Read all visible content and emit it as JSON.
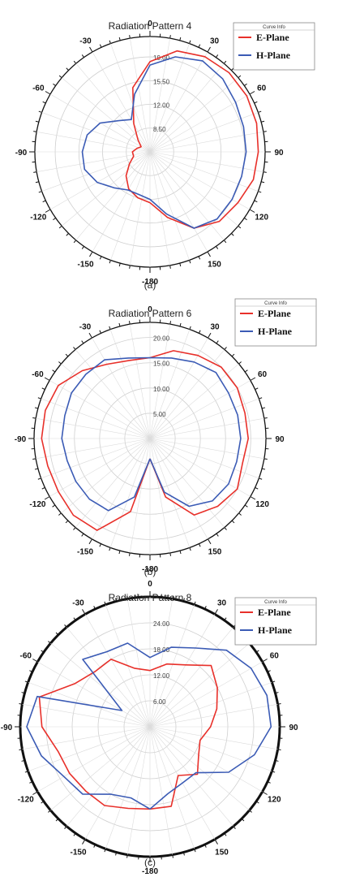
{
  "chart_data": [
    {
      "type": "polar-line",
      "title": "Radiation Pattern 4",
      "caption": "(a)",
      "angle_tick_labels": [
        "0",
        "30",
        "60",
        "90",
        "120",
        "150",
        "-180",
        "-150",
        "-120",
        "-90",
        "-60",
        "-30"
      ],
      "radial_ticks": [
        "8.50",
        "12.00",
        "15.50",
        "19.00"
      ],
      "radial_range": [
        5,
        22
      ],
      "legend": {
        "title": "Curve Info",
        "position": "top-right"
      },
      "theta_deg": [
        -180,
        -165,
        -150,
        -135,
        -120,
        -105,
        -90,
        -75,
        -60,
        -45,
        -30,
        -15,
        0,
        15,
        30,
        45,
        60,
        75,
        90,
        105,
        120,
        135,
        150,
        165,
        180
      ],
      "series": [
        {
          "name": "E-Plane",
          "color": "#e8302a",
          "values": [
            12.5,
            12.0,
            11.3,
            10.0,
            8.5,
            7.5,
            7.6,
            7.0,
            6.5,
            7.5,
            9.8,
            14.8,
            18.3,
            20.4,
            21.2,
            21.5,
            21.5,
            21.3,
            21.0,
            20.8,
            20.0,
            19.5,
            18.0,
            15.0,
            12.5
          ]
        },
        {
          "name": "H-Plane",
          "color": "#3b5bb5",
          "values": [
            12.0,
            11.5,
            11.5,
            12.5,
            14.0,
            15.0,
            15.0,
            14.6,
            13.5,
            11.5,
            10.5,
            13.8,
            17.8,
            19.5,
            20.5,
            20.2,
            19.6,
            19.3,
            19.2,
            19.0,
            19.0,
            19.0,
            18.0,
            14.5,
            12.0
          ]
        }
      ]
    },
    {
      "type": "polar-line",
      "title": "Radiation Pattern 6",
      "caption": "(b)",
      "angle_tick_labels": [
        "0",
        "30",
        "60",
        "90",
        "120",
        "150",
        "-180",
        "-150",
        "-120",
        "-90",
        "-60",
        "-30"
      ],
      "radial_ticks": [
        "5.00",
        "10.00",
        "15.00",
        "20.00"
      ],
      "radial_range": [
        0,
        23
      ],
      "legend": {
        "title": "Curve Info",
        "position": "top-right"
      },
      "theta_deg": [
        -180,
        -165,
        -150,
        -135,
        -120,
        -105,
        -90,
        -75,
        -60,
        -45,
        -30,
        -15,
        0,
        15,
        30,
        45,
        60,
        75,
        90,
        105,
        120,
        135,
        150,
        165,
        180
      ],
      "series": [
        {
          "name": "E-Plane",
          "color": "#e8302a",
          "values": [
            4.0,
            15.0,
            21.0,
            21.5,
            21.0,
            21.0,
            21.5,
            21.5,
            21.0,
            19.0,
            17.0,
            16.0,
            16.0,
            18.0,
            19.0,
            20.0,
            20.0,
            19.5,
            19.5,
            19.0,
            20.0,
            19.0,
            17.5,
            12.0,
            4.0
          ]
        },
        {
          "name": "H-Plane",
          "color": "#3b5bb5",
          "values": [
            4.0,
            12.0,
            16.5,
            17.0,
            17.0,
            17.0,
            17.5,
            17.5,
            18.0,
            18.0,
            18.0,
            16.5,
            16.0,
            16.5,
            17.5,
            18.5,
            18.0,
            18.0,
            18.0,
            17.8,
            18.0,
            17.5,
            15.5,
            11.0,
            4.0
          ]
        }
      ]
    },
    {
      "type": "polar-line",
      "title": "Radiation Pattern 8",
      "caption": "(c)",
      "angle_tick_labels": [
        "0",
        "30",
        "60",
        "90",
        "120",
        "150",
        "-180",
        "-150",
        "-120",
        "-90",
        "-60",
        "-30"
      ],
      "radial_ticks": [
        "6.00",
        "12.00",
        "18.00",
        "24.00"
      ],
      "radial_range": [
        0,
        30
      ],
      "legend": {
        "title": "Curve Info",
        "position": "top-right"
      },
      "theta_deg": [
        -180,
        -165,
        -150,
        -135,
        -120,
        -105,
        -90,
        -75,
        -60,
        -45,
        -30,
        -15,
        0,
        15,
        30,
        45,
        60,
        75,
        90,
        105,
        120,
        135,
        150,
        165,
        180
      ],
      "series": [
        {
          "name": "E-Plane",
          "color": "#e8302a",
          "values": [
            19.0,
            19.5,
            21.0,
            21.0,
            21.5,
            22.0,
            25.0,
            26.5,
            20.0,
            18.0,
            18.0,
            14.0,
            13.0,
            15.0,
            16.5,
            20.0,
            18.0,
            16.0,
            14.0,
            12.0,
            13.0,
            15.5,
            13.0,
            19.0,
            19.0
          ]
        },
        {
          "name": "H-Plane",
          "color": "#3b5bb5",
          "values": [
            19.0,
            17.0,
            18.0,
            22.0,
            23.0,
            26.0,
            28.5,
            27.0,
            7.5,
            22.0,
            20.0,
            20.0,
            16.0,
            19.0,
            21.0,
            25.0,
            27.0,
            28.0,
            28.0,
            25.0,
            21.0,
            15.0,
            15.0,
            16.0,
            19.0
          ]
        }
      ]
    }
  ]
}
